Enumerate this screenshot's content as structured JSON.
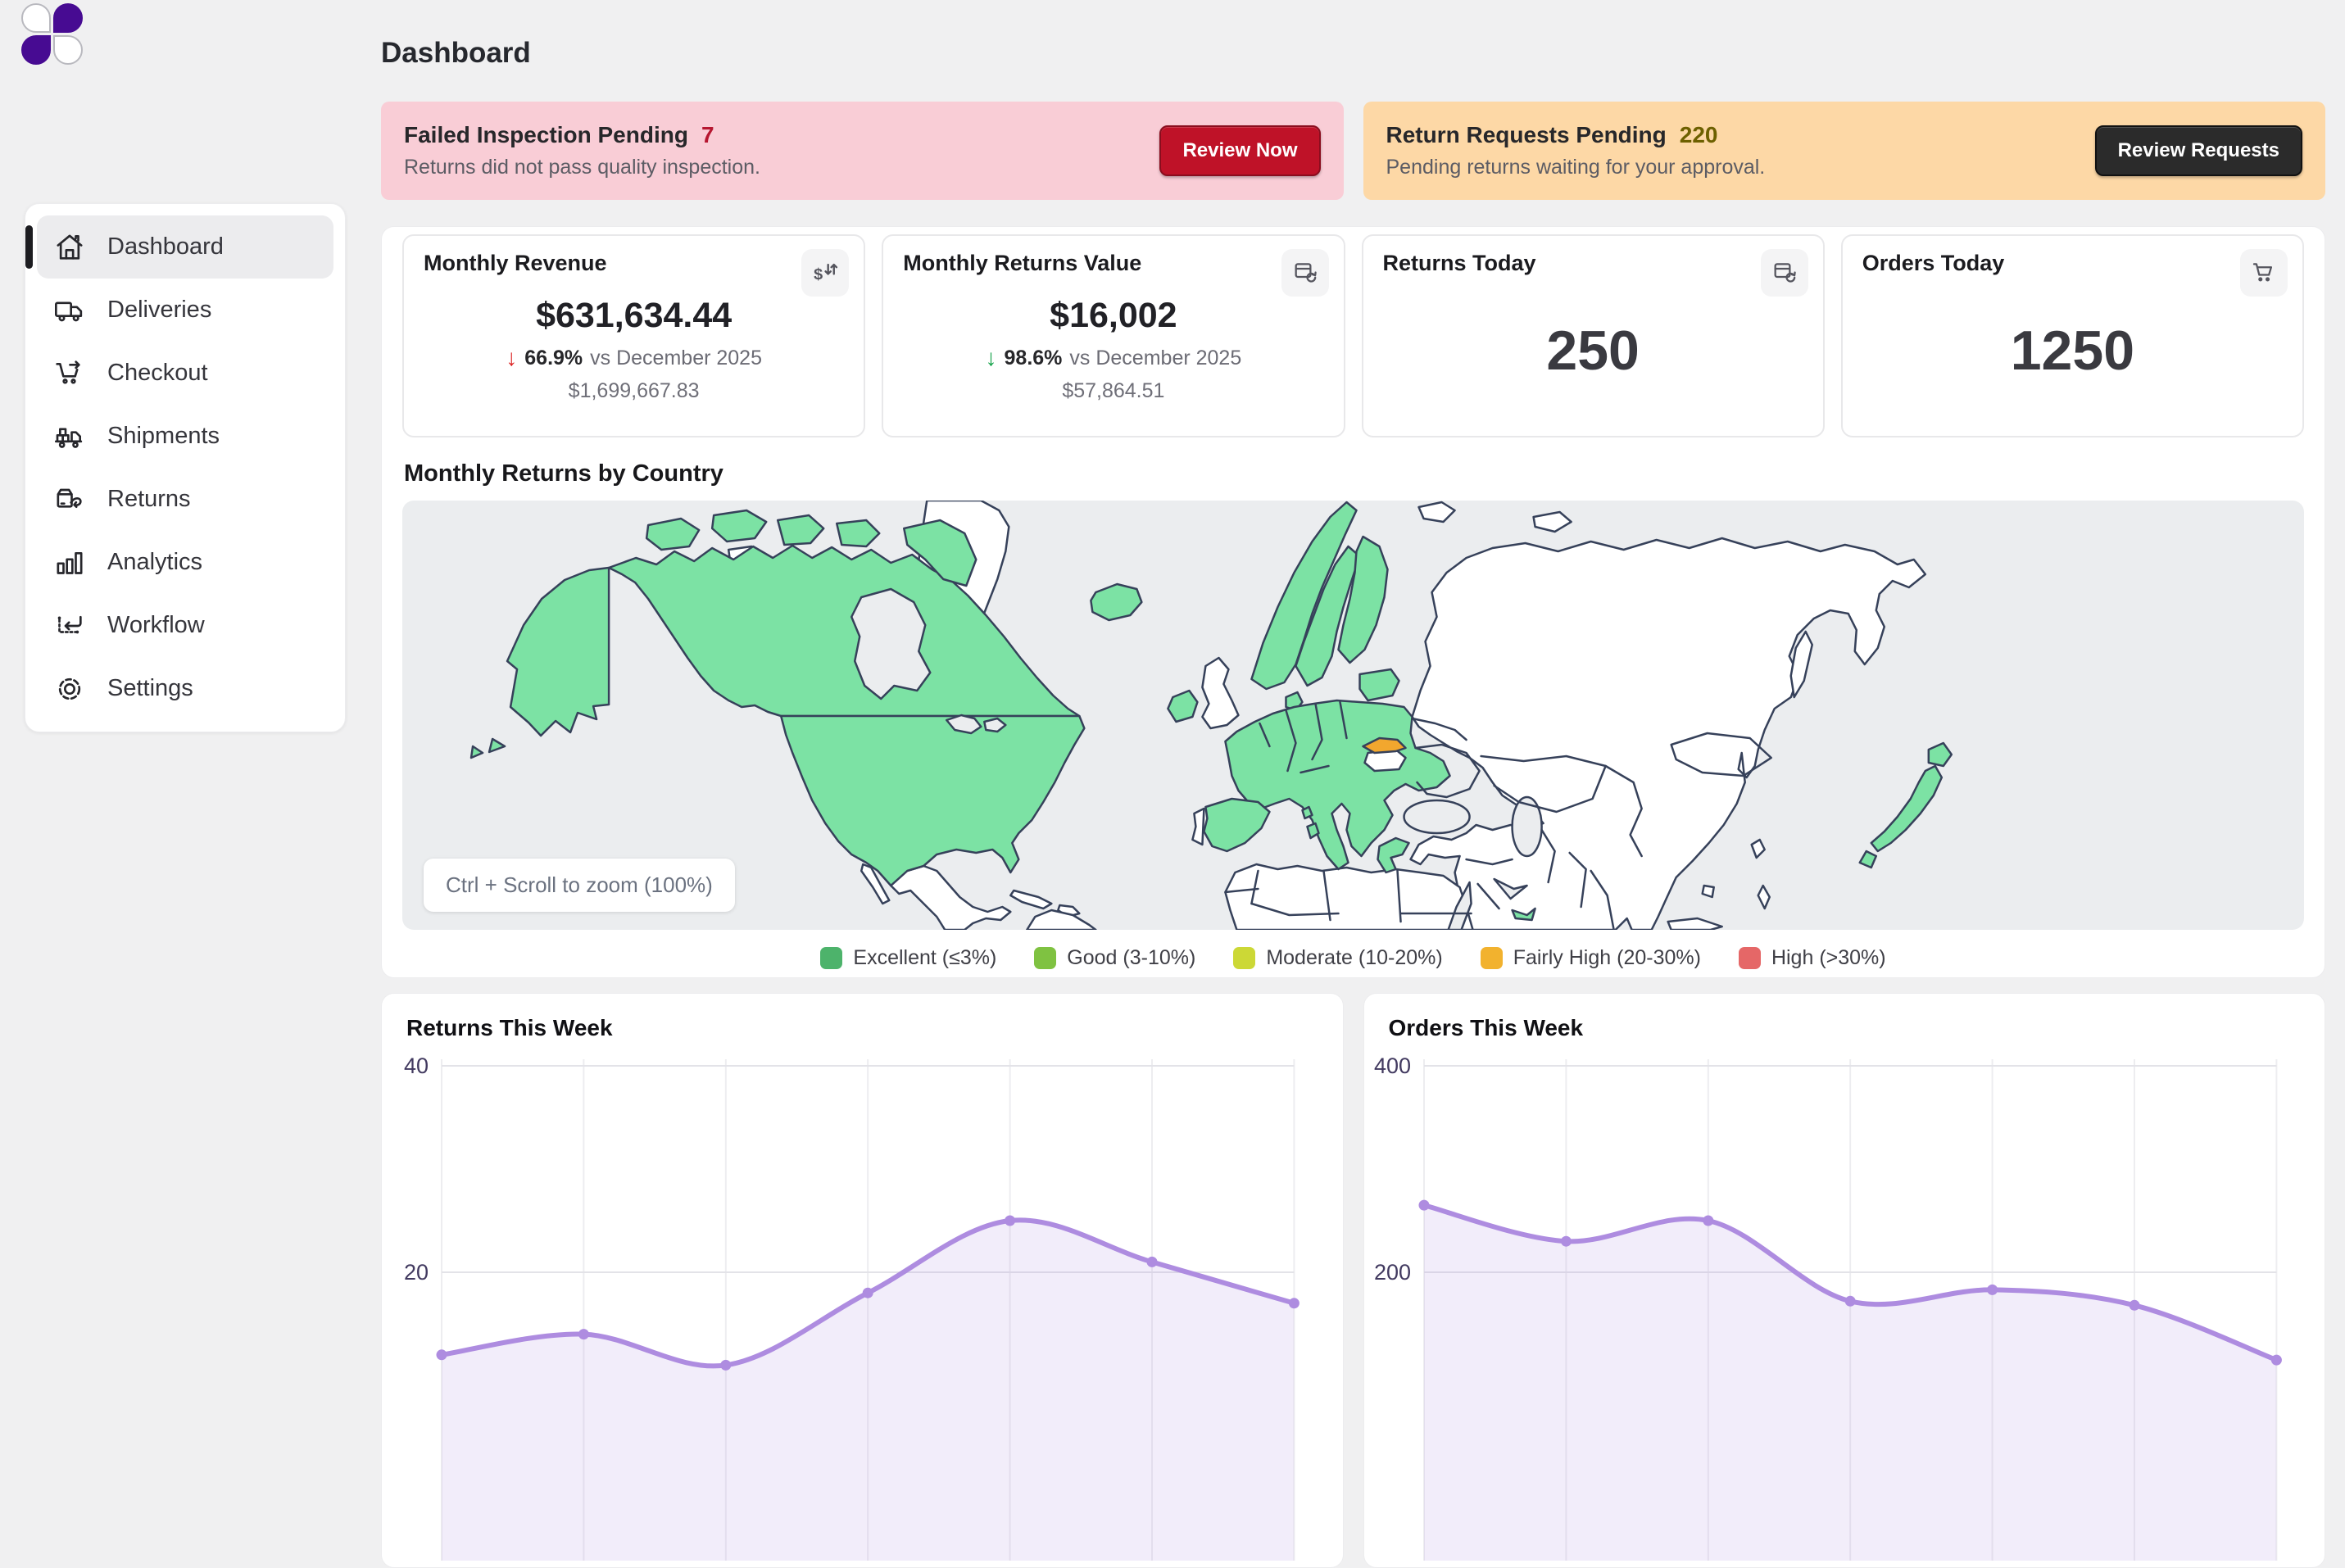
{
  "app": {
    "page_title": "Dashboard",
    "logo": "four-petal-logo"
  },
  "sidebar": {
    "items": [
      {
        "label": "Dashboard",
        "icon": "home-icon",
        "active": true
      },
      {
        "label": "Deliveries",
        "icon": "delivery-truck-icon",
        "active": false
      },
      {
        "label": "Checkout",
        "icon": "checkout-cart-icon",
        "active": false
      },
      {
        "label": "Shipments",
        "icon": "shipments-truck-icon",
        "active": false
      },
      {
        "label": "Returns",
        "icon": "return-box-icon",
        "active": false
      },
      {
        "label": "Analytics",
        "icon": "bar-chart-icon",
        "active": false
      },
      {
        "label": "Workflow",
        "icon": "workflow-icon",
        "active": false
      },
      {
        "label": "Settings",
        "icon": "gear-icon",
        "active": false
      }
    ]
  },
  "alerts": [
    {
      "title": "Failed Inspection Pending",
      "count": "7",
      "description": "Returns did not pass quality inspection.",
      "button_label": "Review Now",
      "background": "#f9cdd6",
      "count_color": "#b61630",
      "button_bg": "#bf1228",
      "button_border": "#8a0d1e",
      "button_text_color": "#ffffff"
    },
    {
      "title": "Return Requests Pending",
      "count": "220",
      "description": "Pending returns waiting for your approval.",
      "button_label": "Review Requests",
      "background": "#fdd8a6",
      "count_color": "#6d6000",
      "button_bg": "#2b2b2b",
      "button_border": "#111111",
      "button_text_color": "#ffffff"
    }
  ],
  "stats": [
    {
      "title": "Monthly Revenue",
      "icon": "currency-exchange-icon",
      "value": "$631,634.44",
      "delta_arrow": "↓",
      "delta_color": "#dc2626",
      "delta": "66.9%",
      "compare": "vs December 2025",
      "secondary": "$1,699,667.83"
    },
    {
      "title": "Monthly Returns Value",
      "icon": "package-sync-icon",
      "value": "$16,002",
      "delta_arrow": "↓",
      "delta_color": "#16a34a",
      "delta": "98.6%",
      "compare": "vs December 2025",
      "secondary": "$57,864.51"
    },
    {
      "title": "Returns Today",
      "icon": "package-sync-icon",
      "value": "250"
    },
    {
      "title": "Orders Today",
      "icon": "cart-icon",
      "value": "1250"
    }
  ],
  "map_section": {
    "title": "Monthly Returns by Country",
    "zoom_hint": "Ctrl + Scroll to zoom (100%)",
    "legend": [
      {
        "label": "Excellent (≤3%)",
        "color": "#4db36b"
      },
      {
        "label": "Good (3-10%)",
        "color": "#7fc241"
      },
      {
        "label": "Moderate (10-20%)",
        "color": "#ccd836"
      },
      {
        "label": "Fairly High (20-30%)",
        "color": "#f2b22e"
      },
      {
        "label": "High (>30%)",
        "color": "#e56767"
      }
    ],
    "fills": {
      "excellent": "#7ce2a4",
      "fairly_high": "#f2a72e",
      "none": "#ffffff"
    }
  },
  "chart_data": [
    {
      "type": "area",
      "title": "Returns This Week",
      "values": [
        12,
        14,
        11,
        18,
        25,
        21,
        17
      ],
      "y_ticks": [
        40,
        20
      ],
      "ylim": [
        0,
        40
      ],
      "x_labels_visible": false,
      "line_color": "#ae8ce0",
      "fill_color": "rgba(174,140,224,0.16)",
      "grid": true
    },
    {
      "type": "area",
      "title": "Orders This Week",
      "values": [
        265,
        230,
        250,
        172,
        183,
        168,
        115
      ],
      "y_ticks": [
        400,
        200
      ],
      "ylim": [
        0,
        400
      ],
      "x_labels_visible": false,
      "line_color": "#ae8ce0",
      "fill_color": "rgba(174,140,224,0.16)",
      "grid": true
    }
  ]
}
